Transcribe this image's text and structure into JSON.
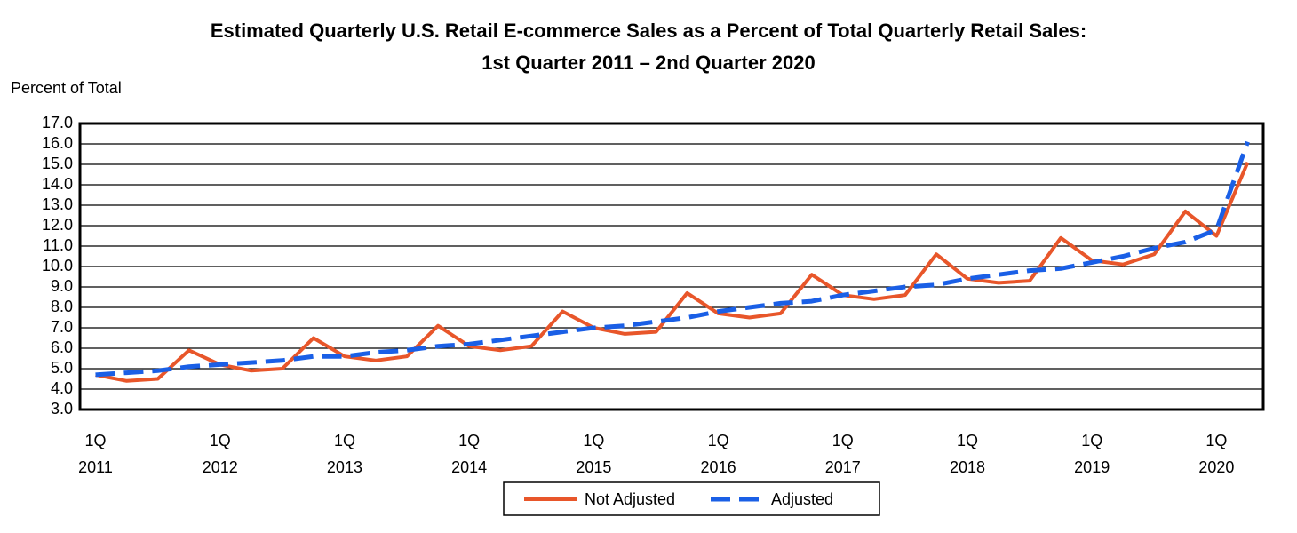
{
  "chart_data": {
    "type": "line",
    "title": "Estimated Quarterly U.S. Retail E-commerce Sales as a Percent of Total Quarterly Retail Sales:",
    "subtitle": "1st Quarter 2011 – 2nd Quarter 2020",
    "y_label": "Percent of Total",
    "categories": [
      "1Q 2011",
      null,
      null,
      null,
      "1Q 2012",
      null,
      null,
      null,
      "1Q 2013",
      null,
      null,
      null,
      "1Q 2014",
      null,
      null,
      null,
      "1Q 2015",
      null,
      null,
      null,
      "1Q 2016",
      null,
      null,
      null,
      "1Q 2017",
      null,
      null,
      null,
      "1Q 2018",
      null,
      null,
      null,
      "1Q 2019",
      null,
      null,
      null,
      "1Q 2020",
      null
    ],
    "series": [
      {
        "name": "Not Adjusted",
        "color": "#e8562a",
        "dash": false,
        "values": [
          4.7,
          4.4,
          4.5,
          5.9,
          5.2,
          4.9,
          5.0,
          6.5,
          5.6,
          5.4,
          5.6,
          7.1,
          6.1,
          5.9,
          6.1,
          7.8,
          7.0,
          6.7,
          6.8,
          8.7,
          7.7,
          7.5,
          7.7,
          9.6,
          8.6,
          8.4,
          8.6,
          10.6,
          9.4,
          9.2,
          9.3,
          11.4,
          10.3,
          10.1,
          10.6,
          12.7,
          11.5,
          15.1
        ]
      },
      {
        "name": "Adjusted",
        "color": "#1a5fe6",
        "dash": true,
        "values": [
          4.7,
          4.8,
          4.9,
          5.1,
          5.2,
          5.3,
          5.4,
          5.6,
          5.6,
          5.8,
          5.9,
          6.1,
          6.2,
          6.4,
          6.6,
          6.8,
          7.0,
          7.1,
          7.3,
          7.5,
          7.8,
          8.0,
          8.2,
          8.3,
          8.6,
          8.8,
          9.0,
          9.1,
          9.4,
          9.6,
          9.8,
          9.9,
          10.2,
          10.5,
          10.9,
          11.2,
          11.8,
          16.1
        ]
      }
    ],
    "ylim": [
      3,
      17
    ],
    "yticks": [
      {
        "value": 3,
        "label": "3.0"
      },
      {
        "value": 4,
        "label": "4.0"
      },
      {
        "value": 5,
        "label": "5.0"
      },
      {
        "value": 6,
        "label": "6.0"
      },
      {
        "value": 7,
        "label": "7.0"
      },
      {
        "value": 8,
        "label": "8.0"
      },
      {
        "value": 9,
        "label": "9.0"
      },
      {
        "value": 10,
        "label": "10.0"
      },
      {
        "value": 11,
        "label": "11.0"
      },
      {
        "value": 12,
        "label": "12.0"
      },
      {
        "value": 13,
        "label": "13.0"
      },
      {
        "value": 14,
        "label": "14.0"
      },
      {
        "value": 15,
        "label": "15.0"
      },
      {
        "value": 16,
        "label": "16.0"
      },
      {
        "value": 17,
        "label": "17.0"
      }
    ],
    "grid": true,
    "legend": "bottom"
  }
}
